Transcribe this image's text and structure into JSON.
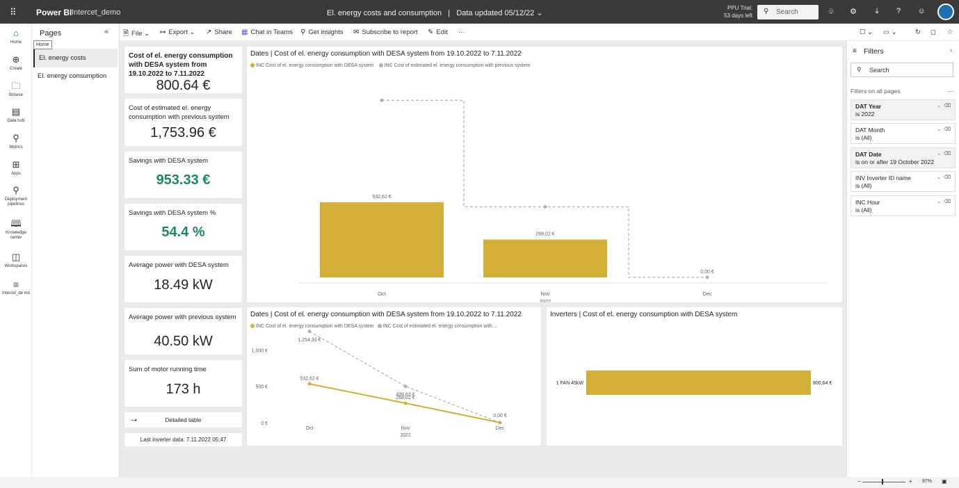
{
  "topbar": {
    "app_name": "Power BI",
    "workspace": "Intercet_demo",
    "report_title": "El. energy costs and consumption",
    "data_updated": "Data updated 05/12/22",
    "trial_line1": "PPU Trial:",
    "trial_line2": "53 days left",
    "search_placeholder": "Search"
  },
  "leftnav": {
    "items": [
      {
        "label": "Home",
        "icon": "home-icon"
      },
      {
        "label": "Create",
        "icon": "plus-icon"
      },
      {
        "label": "Browse",
        "icon": "folder-icon"
      },
      {
        "label": "Data hub",
        "icon": "data-hub-icon"
      },
      {
        "label": "Metrics",
        "icon": "trophy-icon"
      },
      {
        "label": "Apps",
        "icon": "apps-icon"
      },
      {
        "label": "Deployment pipelines",
        "icon": "rocket-icon"
      },
      {
        "label": "Knowledge center",
        "icon": "book-icon"
      },
      {
        "label": "Workspaces",
        "icon": "workspaces-icon"
      },
      {
        "label": "Intercet_de mo",
        "icon": "workspace-icon"
      }
    ],
    "tooltip": "Home"
  },
  "pages": {
    "title": "Pages",
    "items": [
      {
        "label": "El. energy costs",
        "active": true
      },
      {
        "label": "El. energy consumption",
        "active": false
      }
    ]
  },
  "toolbar": {
    "file": "File",
    "export": "Export",
    "share": "Share",
    "chat": "Chat in Teams",
    "insights": "Get insights",
    "subscribe": "Subscribe to report",
    "edit": "Edit",
    "more": "···"
  },
  "kpis": [
    {
      "label": "Cost of el. energy consumption with DESA system from 19.10.2022 to 7.11.2022",
      "value": "800.64 €"
    },
    {
      "label": "Cost of estimated el. energy consumption with previous system",
      "value": "1,753.96 €"
    },
    {
      "label": "Savings with DESA system",
      "value": "953.33 €"
    },
    {
      "label": "Savings with DESA system %",
      "value": "54.4 %"
    },
    {
      "label": "Average power with DESA system",
      "value": "18.49 kW"
    },
    {
      "label": "Average power with previous system",
      "value": "40.50 kW"
    },
    {
      "label": "Sum of motor running time",
      "value": "173 h"
    }
  ],
  "detailed_table": "Detailed table",
  "last_data": "Last inverter data: 7.11.2022 05:47",
  "colors": {
    "gold": "#d4af37",
    "grey": "#b3b0ad",
    "green": "#1b8a5a"
  },
  "chart_data": [
    {
      "type": "bar",
      "title": "Dates | Cost of el. energy consumption with DESA system from 19.10.2022 to 7.11.2022",
      "categories": [
        "Oct",
        "Nov",
        "Dec"
      ],
      "year_label": "2022",
      "series": [
        {
          "name": "INC Cost of el. energy consumption with DESA system",
          "values": [
            532.62,
            268.02,
            0.0
          ],
          "labels": [
            "532,62 €",
            "268,02 €",
            "0,00 €"
          ]
        },
        {
          "name": "INC Cost of estimated el. energy consumption with previous system",
          "values": [
            1254.33,
            499.63,
            0.0
          ]
        }
      ],
      "ylim": [
        0,
        1300
      ]
    },
    {
      "type": "line",
      "title": "Dates | Cost of el. energy consumption with DESA system from 19.10.2022 to 7.11.2022",
      "categories": [
        "Oct",
        "Nov",
        "Dec"
      ],
      "year_label": "2022",
      "series": [
        {
          "name": "INC Cost of el. energy consumption with DESA system",
          "values": [
            532.62,
            268.02,
            0.0
          ],
          "labels": [
            "532,62 €",
            "268,02 €",
            "0,00 €"
          ]
        },
        {
          "name": "INC Cost of estimated el. energy consumption with ...",
          "values": [
            1254.33,
            499.63,
            0.0
          ],
          "labels": [
            "1,254,33 €",
            "499,63 €",
            ""
          ]
        }
      ],
      "yticks": [
        "1,000 €",
        "500 €",
        "0 €"
      ],
      "ytick_values": [
        1000,
        500,
        0
      ],
      "ylim": [
        0,
        1300
      ]
    },
    {
      "type": "bar",
      "orientation": "horizontal",
      "title": "Inverters | Cost of el. energy consumption with DESA system",
      "categories": [
        "1 FAN 45kW"
      ],
      "values": [
        800.64
      ],
      "labels": [
        "800,64 €"
      ]
    }
  ],
  "filters": {
    "title": "Filters",
    "search": "Search",
    "section": "Filters on all pages",
    "items": [
      {
        "name": "DAT Year",
        "value": "is 2022",
        "selected": true
      },
      {
        "name": "DAT Month",
        "value": "is (All)",
        "selected": false
      },
      {
        "name": "DAT Date",
        "value": "is on or after 19 October 2022",
        "selected": true
      },
      {
        "name": "INV Inverter ID name",
        "value": "is (All)",
        "selected": false
      },
      {
        "name": "INC Hour",
        "value": "is (All)",
        "selected": false
      }
    ]
  },
  "status": {
    "zoom": "97%"
  }
}
